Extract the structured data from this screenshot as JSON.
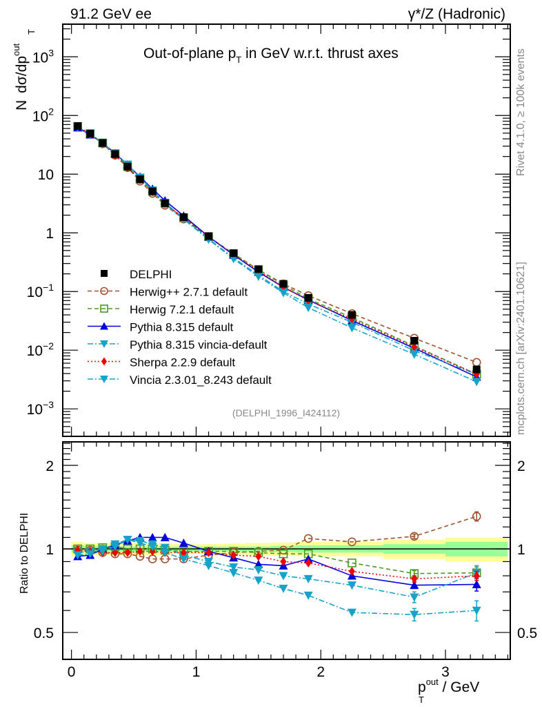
{
  "chart_data": [
    {
      "type": "line",
      "panel": "main",
      "title": "Out-of-plane p_T in GeV w.r.t. thrust axes",
      "header_left": "91.2 GeV ee",
      "header_right": "γ*/Z (Hadronic)",
      "ylabel": "N  dσ/dp_T^out",
      "yscale": "log",
      "ylim": [
        0.00034,
        3600
      ],
      "xlim": [
        -0.07,
        3.52
      ],
      "ytick_labels": [
        "10^3",
        "10^2",
        "10",
        "1",
        "10^-1",
        "10^-2",
        "10^-3"
      ],
      "ytick_values": [
        1000,
        100,
        10,
        1,
        0.1,
        0.01,
        0.001
      ],
      "watermark": "(DELPHI_1996_I424112)",
      "side_text_top": "Rivet 4.1.0, ≥ 100k events",
      "side_text_bottom": "mcplots.cern.ch [arXiv:2401.10621]",
      "legend_position": "center-left",
      "x": [
        0.05,
        0.15,
        0.25,
        0.35,
        0.45,
        0.55,
        0.65,
        0.75,
        0.9,
        1.1,
        1.3,
        1.5,
        1.7,
        1.9,
        2.25,
        2.75,
        3.25
      ],
      "series": [
        {
          "name": "DELPHI",
          "style": "data",
          "color": "#000000",
          "marker": "square-filled",
          "values": [
            66,
            49,
            34,
            22,
            13.5,
            8.2,
            5.1,
            3.2,
            1.85,
            0.88,
            0.45,
            0.24,
            0.135,
            0.078,
            0.04,
            0.0145,
            0.0047
          ]
        },
        {
          "name": "Herwig++ 2.7.1 default",
          "style": "dashed",
          "color": "#a0522d",
          "marker": "circle-open",
          "values": [
            65,
            48,
            33,
            21,
            12.9,
            7.6,
            4.7,
            2.95,
            1.72,
            0.84,
            0.44,
            0.235,
            0.135,
            0.085,
            0.042,
            0.016,
            0.0062
          ]
        },
        {
          "name": "Herwig 7.2.1 default",
          "style": "dashed",
          "color": "#4a9a1f",
          "marker": "square-open",
          "values": [
            65,
            49,
            34,
            22.3,
            13.5,
            8.2,
            5.1,
            3.2,
            1.8,
            0.86,
            0.44,
            0.235,
            0.13,
            0.075,
            0.036,
            0.0118,
            0.0039
          ]
        },
        {
          "name": "Pythia 8.315 default",
          "style": "solid",
          "color": "#0000dd",
          "marker": "triangle-up-filled",
          "values": [
            62,
            47,
            34,
            22.6,
            14.5,
            9.0,
            5.6,
            3.55,
            1.95,
            0.86,
            0.42,
            0.215,
            0.118,
            0.072,
            0.032,
            0.0108,
            0.0035
          ]
        },
        {
          "name": "Pythia 8.315 vincia-default",
          "style": "dashdot",
          "color": "#17a2c8",
          "marker": "triangle-down-filled",
          "values": [
            64,
            48,
            34,
            22.8,
            14.6,
            8.8,
            5.3,
            3.25,
            1.75,
            0.79,
            0.375,
            0.19,
            0.1,
            0.061,
            0.03,
            0.0098,
            0.0039
          ]
        },
        {
          "name": "Sherpa 2.2.9 default",
          "style": "dotted",
          "color": "#ee0000",
          "marker": "diamond-filled",
          "values": [
            65,
            48,
            33,
            21.2,
            13.1,
            8.0,
            5.0,
            3.1,
            1.8,
            0.86,
            0.43,
            0.225,
            0.12,
            0.07,
            0.034,
            0.0114,
            0.0039
          ]
        },
        {
          "name": "Vincia 2.3.01_8.243 default",
          "style": "dashdot",
          "color": "#17a2c8",
          "marker": "triangle-down-filled",
          "values": [
            63,
            47,
            33.5,
            22.5,
            14.6,
            8.6,
            5.2,
            3.1,
            1.7,
            0.77,
            0.36,
            0.18,
            0.095,
            0.053,
            0.024,
            0.0085,
            0.0029
          ]
        }
      ]
    },
    {
      "type": "line",
      "panel": "ratio",
      "ylabel": "Ratio to DELPHI",
      "xlabel": "p_T^out / GeV",
      "yscale": "log",
      "ylim": [
        0.4,
        2.43
      ],
      "xlim": [
        -0.07,
        3.52
      ],
      "ytick_labels": [
        "2",
        "1",
        "0.5"
      ],
      "ytick_values": [
        2,
        1,
        0.5
      ],
      "xtick_labels": [
        "0",
        "1",
        "2",
        "3"
      ],
      "xtick_values": [
        0,
        1,
        2,
        3
      ],
      "x": [
        0.05,
        0.15,
        0.25,
        0.35,
        0.45,
        0.55,
        0.65,
        0.75,
        0.9,
        1.1,
        1.3,
        1.5,
        1.7,
        1.9,
        2.25,
        2.75,
        3.25
      ],
      "uncertainty_bands": {
        "edges": [
          0,
          0.1,
          0.2,
          0.3,
          0.4,
          0.5,
          0.6,
          0.7,
          0.8,
          1.0,
          1.2,
          1.4,
          1.6,
          1.8,
          2.0,
          2.5,
          3.0,
          3.5
        ],
        "stat_color": "#99ff99",
        "total_color": "#ffff99",
        "stat_half_width": [
          0.03,
          0.025,
          0.025,
          0.02,
          0.02,
          0.02,
          0.02,
          0.02,
          0.02,
          0.02,
          0.02,
          0.02,
          0.025,
          0.03,
          0.03,
          0.04,
          0.06
        ],
        "total_half_width": [
          0.06,
          0.05,
          0.05,
          0.05,
          0.05,
          0.05,
          0.05,
          0.05,
          0.04,
          0.04,
          0.045,
          0.05,
          0.055,
          0.06,
          0.06,
          0.08,
          0.1
        ]
      },
      "series": [
        {
          "name": "Herwig++ 2.7.1 default",
          "style": "dashed",
          "color": "#a0522d",
          "marker": "circle-open",
          "values": [
            0.99,
            0.99,
            0.97,
            0.96,
            0.96,
            0.94,
            0.92,
            0.92,
            0.92,
            0.95,
            0.97,
            0.98,
            0.99,
            1.09,
            1.06,
            1.11,
            1.31
          ],
          "errors": [
            0.01,
            0.01,
            0.01,
            0.01,
            0.01,
            0.01,
            0.01,
            0.01,
            0.01,
            0.01,
            0.01,
            0.01,
            0.01,
            0.01,
            0.01,
            0.02,
            0.05
          ]
        },
        {
          "name": "Herwig 7.2.1 default",
          "style": "dashed",
          "color": "#4a9a1f",
          "marker": "square-open",
          "values": [
            1.0,
            1.0,
            1.01,
            1.02,
            1.0,
            1.0,
            1.0,
            0.99,
            0.98,
            0.98,
            0.98,
            0.97,
            0.96,
            0.96,
            0.89,
            0.815,
            0.82
          ],
          "errors": [
            0.01,
            0.01,
            0.01,
            0.01,
            0.01,
            0.01,
            0.01,
            0.01,
            0.01,
            0.01,
            0.01,
            0.01,
            0.01,
            0.01,
            0.01,
            0.02,
            0.04
          ]
        },
        {
          "name": "Pythia 8.315 default",
          "style": "solid",
          "color": "#0000dd",
          "marker": "triangle-up-filled",
          "values": [
            0.94,
            0.95,
            1.0,
            1.03,
            1.07,
            1.1,
            1.1,
            1.1,
            1.05,
            0.98,
            0.93,
            0.88,
            0.87,
            0.92,
            0.8,
            0.74,
            0.745
          ],
          "errors": [
            0.01,
            0.01,
            0.01,
            0.01,
            0.01,
            0.01,
            0.01,
            0.01,
            0.01,
            0.01,
            0.01,
            0.01,
            0.01,
            0.01,
            0.01,
            0.02,
            0.04
          ]
        },
        {
          "name": "Pythia 8.315 vincia-default",
          "style": "dashdot",
          "color": "#17a2c8",
          "marker": "triangle-down-filled",
          "values": [
            0.97,
            0.98,
            1.0,
            1.04,
            1.08,
            1.07,
            1.04,
            1.01,
            0.95,
            0.9,
            0.86,
            0.84,
            0.8,
            0.78,
            0.74,
            0.67,
            0.82
          ],
          "errors": [
            0.01,
            0.01,
            0.01,
            0.01,
            0.01,
            0.01,
            0.01,
            0.01,
            0.01,
            0.01,
            0.01,
            0.01,
            0.01,
            0.01,
            0.01,
            0.03,
            0.05
          ]
        },
        {
          "name": "Sherpa 2.2.9 default",
          "style": "dotted",
          "color": "#ee0000",
          "marker": "diamond-filled",
          "values": [
            0.99,
            0.98,
            0.97,
            0.97,
            0.97,
            0.98,
            0.98,
            0.97,
            0.97,
            0.97,
            0.95,
            0.94,
            0.9,
            0.89,
            0.83,
            0.78,
            0.8
          ],
          "errors": [
            0.01,
            0.01,
            0.01,
            0.01,
            0.01,
            0.01,
            0.01,
            0.01,
            0.01,
            0.01,
            0.01,
            0.01,
            0.01,
            0.01,
            0.01,
            0.02,
            0.03
          ]
        },
        {
          "name": "Vincia 2.3.01_8.243 default",
          "style": "dashdot",
          "color": "#17a2c8",
          "marker": "triangle-down-filled",
          "values": [
            0.95,
            0.96,
            0.98,
            1.02,
            1.08,
            1.05,
            1.02,
            0.97,
            0.92,
            0.87,
            0.82,
            0.77,
            0.72,
            0.68,
            0.59,
            0.58,
            0.6
          ],
          "errors": [
            0.01,
            0.01,
            0.01,
            0.01,
            0.01,
            0.01,
            0.01,
            0.01,
            0.01,
            0.01,
            0.01,
            0.01,
            0.01,
            0.01,
            0.01,
            0.03,
            0.05
          ]
        }
      ]
    }
  ],
  "labels": {
    "header_left": "91.2 GeV ee",
    "header_right": "γ*/Z (Hadronic)",
    "title_pre": "Out-of-plane p",
    "title_sub": "T",
    "title_post": " in GeV w.r.t. thrust axes",
    "ylabel_n": "N",
    "ylabel_main": "dσ/dp",
    "ylabel_sub": "T",
    "ylabel_sup": "out",
    "watermark": "(DELPHI_1996_I424112)",
    "side_top": "Rivet 4.1.0, ≥ 100k events",
    "side_bottom": "mcplots.cern.ch [arXiv:2401.10621]",
    "ratio_ylabel": "Ratio to DELPHI",
    "xlabel_p": "p",
    "xlabel_sub": "T",
    "xlabel_sup": "out",
    "xlabel_post": " / GeV"
  }
}
